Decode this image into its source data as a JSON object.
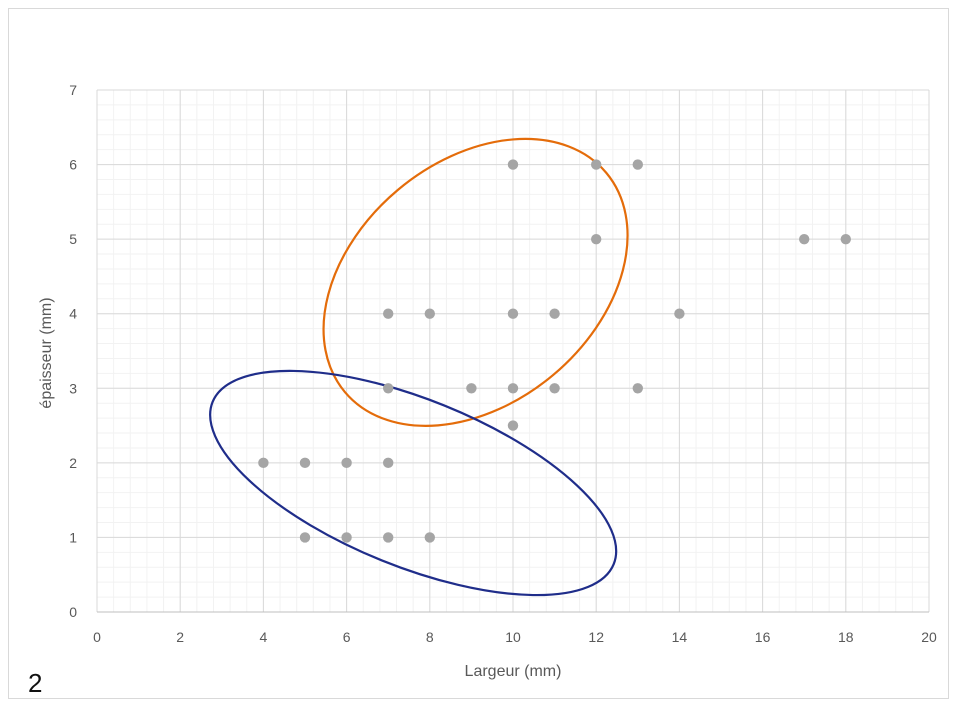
{
  "panel_label": "2",
  "chart_data": {
    "type": "scatter",
    "title": "",
    "xlabel": "Largeur (mm)",
    "ylabel": "épaisseur (mm)",
    "xlim": [
      0,
      20
    ],
    "ylim": [
      0,
      7
    ],
    "x_ticks": [
      0,
      2,
      4,
      6,
      8,
      10,
      12,
      14,
      16,
      18,
      20
    ],
    "y_ticks": [
      0,
      1,
      2,
      3,
      4,
      5,
      6,
      7
    ],
    "grid": true,
    "minor_grid": true,
    "point_color": "#a5a5a5",
    "series": [
      {
        "points": [
          {
            "x": 10,
            "y": 6
          },
          {
            "x": 12,
            "y": 6
          },
          {
            "x": 13,
            "y": 6
          },
          {
            "x": 12,
            "y": 5
          },
          {
            "x": 17,
            "y": 5
          },
          {
            "x": 18,
            "y": 5
          },
          {
            "x": 7,
            "y": 4
          },
          {
            "x": 8,
            "y": 4
          },
          {
            "x": 10,
            "y": 4
          },
          {
            "x": 11,
            "y": 4
          },
          {
            "x": 14,
            "y": 4
          },
          {
            "x": 7,
            "y": 3
          },
          {
            "x": 9,
            "y": 3
          },
          {
            "x": 10,
            "y": 3
          },
          {
            "x": 11,
            "y": 3
          },
          {
            "x": 13,
            "y": 3
          },
          {
            "x": 10,
            "y": 2.5
          },
          {
            "x": 4,
            "y": 2
          },
          {
            "x": 5,
            "y": 2
          },
          {
            "x": 6,
            "y": 2
          },
          {
            "x": 7,
            "y": 2
          },
          {
            "x": 5,
            "y": 1
          },
          {
            "x": 6,
            "y": 1
          },
          {
            "x": 7,
            "y": 1
          },
          {
            "x": 8,
            "y": 1
          }
        ]
      }
    ],
    "annotations": [
      {
        "shape": "ellipse",
        "color": "#e46c0a",
        "cx": 9.1,
        "cy": 4.42,
        "rx": 4.1,
        "ry": 1.62,
        "angle_deg": -40
      },
      {
        "shape": "ellipse",
        "color": "#1f2d8a",
        "cx": 7.6,
        "cy": 1.73,
        "rx": 5.2,
        "ry": 1.12,
        "angle_deg": 22
      }
    ]
  }
}
